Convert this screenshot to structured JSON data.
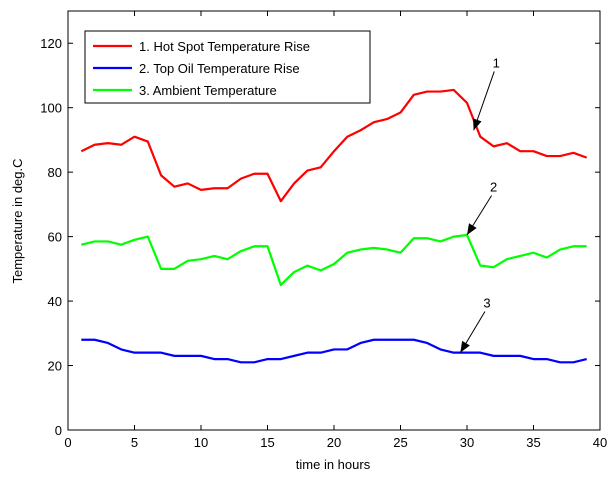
{
  "chart_data": {
    "type": "line",
    "xlabel": "time in hours",
    "ylabel": "Temperature in deg.C",
    "xlim": [
      0,
      40
    ],
    "ylim": [
      0,
      130
    ],
    "xticks": [
      0,
      5,
      10,
      15,
      20,
      25,
      30,
      35,
      40
    ],
    "yticks": [
      0,
      20,
      40,
      60,
      80,
      100,
      120
    ],
    "grid": false,
    "legend_position": "top-left",
    "x": [
      1,
      2,
      3,
      4,
      5,
      6,
      7,
      8,
      9,
      10,
      11,
      12,
      13,
      14,
      15,
      16,
      17,
      18,
      19,
      20,
      21,
      22,
      23,
      24,
      25,
      26,
      27,
      28,
      29,
      30,
      31,
      32,
      33,
      34,
      35,
      36,
      37,
      38,
      39
    ],
    "series": [
      {
        "name": "1. Hot Spot Temperature Rise",
        "color": "#ff0000",
        "values": [
          86.5,
          88.5,
          89,
          88.5,
          91,
          89.5,
          79,
          75.5,
          76.5,
          74.5,
          75,
          75,
          78,
          79.5,
          79.5,
          71,
          76.5,
          80.5,
          81.5,
          86.5,
          91,
          93,
          95.5,
          96.5,
          98.5,
          104,
          105,
          105,
          105.5,
          101.5,
          91,
          88,
          89,
          86.5,
          86.5,
          85,
          85,
          86,
          84.5
        ]
      },
      {
        "name": "2. Top Oil Temperature Rise",
        "color": "#0000ff",
        "values": [
          28,
          28,
          27,
          25,
          24,
          24,
          24,
          23,
          23,
          23,
          22,
          22,
          21,
          21,
          22,
          22,
          23,
          24,
          24,
          25,
          25,
          27,
          28,
          28,
          28,
          28,
          27,
          25,
          24,
          24,
          24,
          23,
          23,
          23,
          22,
          22,
          21,
          21,
          22
        ]
      },
      {
        "name": "3. Ambient Temperature",
        "color": "#00ff00",
        "values": [
          57.5,
          58.5,
          58.5,
          57.5,
          59,
          60,
          50,
          50,
          52.5,
          53,
          54,
          53,
          55.5,
          57,
          57,
          45,
          49,
          51,
          49.5,
          51.5,
          55,
          56,
          56.5,
          56,
          55,
          59.5,
          59.5,
          58.5,
          60,
          60.5,
          51,
          50.5,
          53,
          54,
          55,
          53.5,
          56,
          57,
          57
        ]
      }
    ],
    "annotations": [
      {
        "label": "1",
        "target_x": 30.5,
        "target_y": 93,
        "text_x": 32.2,
        "text_y": 112.5
      },
      {
        "label": "2",
        "target_x": 30,
        "target_y": 60.5,
        "text_x": 32,
        "text_y": 74
      },
      {
        "label": "3",
        "target_x": 29.5,
        "target_y": 24,
        "text_x": 31.5,
        "text_y": 38
      }
    ]
  }
}
